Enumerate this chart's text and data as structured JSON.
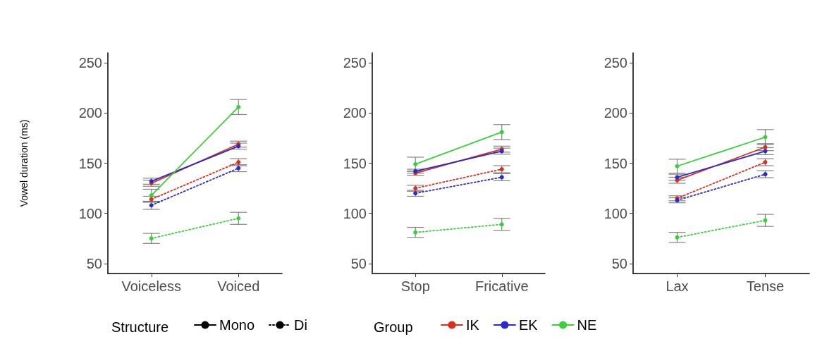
{
  "chart_data": [
    {
      "type": "line",
      "ylabel": "Vowel duration (ms)",
      "categories": [
        "Voiceless",
        "Voiced"
      ],
      "ylim": [
        40,
        260
      ],
      "yticks": [
        50,
        100,
        150,
        200,
        250
      ],
      "grid": false,
      "marker": "circle",
      "legend": "bottom",
      "legend_title": "Structure",
      "annotations": [
        "Group"
      ],
      "series": [
        {
          "name": "Mono",
          "color": "#000000",
          "line_style": "solid",
          "values": [
            null,
            null
          ]
        },
        {
          "name": "Di",
          "color": "#000000",
          "line_style": "dotted",
          "values": [
            null,
            null
          ]
        },
        {
          "name": "IK",
          "color": "#d7301f",
          "line_style": "solid",
          "values": [
            130,
            169
          ],
          "errors": [
            3,
            3
          ]
        },
        {
          "name": "EK",
          "color": "#2b2bc8",
          "line_style": "solid",
          "values": [
            132,
            167
          ],
          "errors": [
            3,
            3
          ]
        },
        {
          "name": "NE",
          "color": "#3ccf3c",
          "line_style": "solid",
          "values": [
            118,
            206
          ],
          "errors": [
            6,
            7.5
          ]
        },
        {
          "color": "#d7301f",
          "line_style": "dotted",
          "values": [
            114,
            151
          ],
          "errors": [
            3,
            3.5
          ]
        },
        {
          "color": "#2b2bc8",
          "line_style": "dotted",
          "values": [
            108,
            145
          ],
          "errors": [
            4,
            3.5
          ]
        },
        {
          "color": "#3ccf3c",
          "line_style": "dotted",
          "values": [
            75,
            95
          ],
          "errors": [
            5,
            6
          ]
        }
      ]
    },
    {
      "type": "line",
      "categories": [
        "Stop",
        "Fricative"
      ],
      "ylim": [
        40,
        260
      ],
      "yticks": [
        50,
        100,
        150,
        200,
        250
      ],
      "grid": false,
      "marker": "circle",
      "series": [
        {
          "color": "#d7301f",
          "line_style": "solid",
          "values": [
            140,
            164
          ],
          "errors": [
            2,
            3
          ]
        },
        {
          "color": "#2b2bc8",
          "line_style": "solid",
          "values": [
            142,
            162
          ],
          "errors": [
            2,
            3
          ]
        },
        {
          "color": "#3ccf3c",
          "line_style": "solid",
          "values": [
            149,
            181
          ],
          "errors": [
            7,
            7.5
          ]
        },
        {
          "color": "#d7301f",
          "line_style": "dotted",
          "values": [
            125,
            144
          ],
          "errors": [
            3,
            3.5
          ]
        },
        {
          "color": "#2b2bc8",
          "line_style": "dotted",
          "values": [
            120,
            136
          ],
          "errors": [
            3,
            3.5
          ]
        },
        {
          "color": "#3ccf3c",
          "line_style": "dotted",
          "values": [
            81,
            89
          ],
          "errors": [
            5,
            6
          ]
        }
      ]
    },
    {
      "type": "line",
      "categories": [
        "Lax",
        "Tense"
      ],
      "ylim": [
        40,
        260
      ],
      "yticks": [
        50,
        100,
        150,
        200,
        250
      ],
      "grid": false,
      "marker": "circle",
      "series": [
        {
          "color": "#d7301f",
          "line_style": "solid",
          "values": [
            133,
            166
          ],
          "errors": [
            3,
            3.5
          ]
        },
        {
          "color": "#2b2bc8",
          "line_style": "solid",
          "values": [
            136,
            162
          ],
          "errors": [
            3,
            3.5
          ]
        },
        {
          "color": "#3ccf3c",
          "line_style": "solid",
          "values": [
            147,
            176
          ],
          "errors": [
            7,
            7.5
          ]
        },
        {
          "color": "#d7301f",
          "line_style": "dotted",
          "values": [
            115,
            151
          ],
          "errors": [
            2.5,
            3.5
          ]
        },
        {
          "color": "#2b2bc8",
          "line_style": "dotted",
          "values": [
            113,
            139
          ],
          "errors": [
            2.5,
            3.5
          ]
        },
        {
          "color": "#3ccf3c",
          "line_style": "dotted",
          "values": [
            76,
            93
          ],
          "errors": [
            5,
            6
          ]
        }
      ]
    }
  ]
}
